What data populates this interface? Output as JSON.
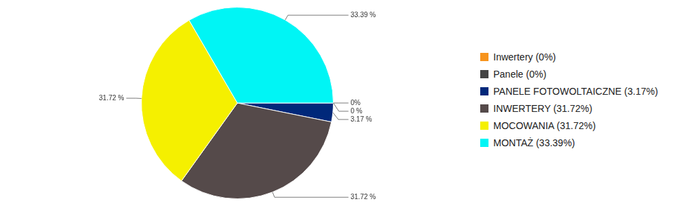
{
  "chart_data": {
    "type": "pie",
    "categories": [
      "Inwertery (0%)",
      "Panele (0%)",
      "PANELE FOTOWOLTAICZNE (3.17%)",
      "INWERTERY (31.72%)",
      "MOCOWANIA (31.72%)",
      "MONTAŻ (33.39%)"
    ],
    "values": [
      0,
      0,
      3.17,
      31.72,
      31.72,
      33.39
    ],
    "value_labels": [
      "0%",
      "0 %",
      "3.17 %",
      "31.72 %",
      "31.72 %",
      "33.39 %"
    ],
    "colors": [
      "#f7941d",
      "#444444",
      "#00287a",
      "#554a4a",
      "#f5f000",
      "#00f5f5"
    ],
    "data_labels": true,
    "legend": "right"
  }
}
